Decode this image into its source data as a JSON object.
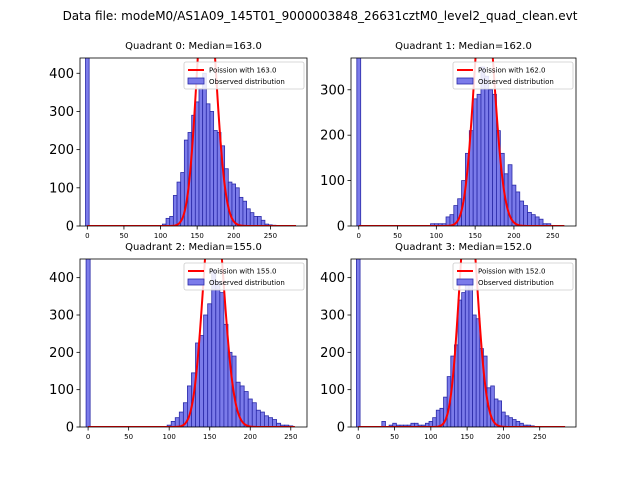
{
  "figure": {
    "title": "Data file: modeM0/AS1A09_145T01_9000003848_26631cztM0_level2_quad_clean.evt"
  },
  "colors": {
    "bar_fill": "#7b7bea",
    "bar_edge": "#2a2aa8",
    "poisson": "#ff0000"
  },
  "chart_data": [
    {
      "type": "bar",
      "title": "Quadrant 0: Median=163.0",
      "xlim": [
        -10,
        300
      ],
      "ylim": [
        0,
        440
      ],
      "xticks": [
        0,
        50,
        100,
        150,
        200,
        250
      ],
      "yticks": [
        0,
        100,
        200,
        300,
        400
      ],
      "bin_width": 5,
      "median": 163.0,
      "spike": {
        "x": 0,
        "value": 440
      },
      "bars": {
        "x": [
          105,
          110,
          115,
          120,
          125,
          130,
          135,
          140,
          145,
          150,
          155,
          160,
          165,
          170,
          175,
          180,
          185,
          190,
          195,
          200,
          205,
          210,
          215,
          220,
          225,
          230,
          235,
          240,
          245,
          250,
          255,
          260
        ],
        "values": [
          5,
          20,
          25,
          80,
          115,
          140,
          225,
          245,
          290,
          325,
          360,
          400,
          320,
          300,
          250,
          245,
          210,
          150,
          115,
          110,
          100,
          75,
          65,
          45,
          35,
          25,
          25,
          15,
          5,
          3,
          2,
          1
        ]
      },
      "legend": [
        "Poission with 163.0",
        "Observed distribution"
      ]
    },
    {
      "type": "bar",
      "title": "Quadrant 1: Median=162.0",
      "xlim": [
        -10,
        280
      ],
      "ylim": [
        0,
        370
      ],
      "xticks": [
        0,
        50,
        100,
        150,
        200,
        250
      ],
      "yticks": [
        0,
        100,
        200,
        300
      ],
      "bin_width": 5,
      "median": 162.0,
      "spike": {
        "x": 0,
        "value": 370
      },
      "bars": {
        "x": [
          95,
          100,
          105,
          110,
          115,
          120,
          125,
          130,
          135,
          140,
          145,
          150,
          155,
          160,
          165,
          170,
          175,
          180,
          185,
          190,
          195,
          200,
          205,
          210,
          215,
          220,
          225,
          230,
          235,
          240,
          245
        ],
        "values": [
          5,
          5,
          5,
          5,
          20,
          25,
          45,
          60,
          100,
          160,
          210,
          280,
          290,
          350,
          330,
          300,
          290,
          210,
          160,
          115,
          135,
          90,
          75,
          55,
          45,
          30,
          25,
          20,
          15,
          5,
          5
        ]
      },
      "legend": [
        "Poission with 162.0",
        "Observed distribution"
      ]
    },
    {
      "type": "bar",
      "title": "Quadrant 2: Median=155.0",
      "xlim": [
        -10,
        270
      ],
      "ylim": [
        0,
        450
      ],
      "xticks": [
        0,
        50,
        100,
        150,
        200,
        250
      ],
      "yticks": [
        0,
        100,
        200,
        300,
        400
      ],
      "bin_width": 5,
      "median": 155.0,
      "spike": {
        "x": 0,
        "value": 450
      },
      "bars": {
        "x": [
          100,
          105,
          110,
          115,
          120,
          125,
          130,
          135,
          140,
          145,
          150,
          155,
          160,
          165,
          170,
          175,
          180,
          185,
          190,
          195,
          200,
          205,
          210,
          215,
          220,
          225,
          230,
          235,
          240,
          245,
          250
        ],
        "values": [
          5,
          15,
          25,
          40,
          65,
          110,
          145,
          225,
          245,
          300,
          330,
          420,
          390,
          360,
          275,
          200,
          190,
          120,
          110,
          95,
          75,
          65,
          45,
          40,
          30,
          25,
          20,
          10,
          5,
          5,
          3
        ]
      },
      "legend": [
        "Poission with 155.0",
        "Observed distribution"
      ]
    },
    {
      "type": "bar",
      "title": "Quadrant 3: Median=152.0",
      "xlim": [
        -10,
        300
      ],
      "ylim": [
        0,
        450
      ],
      "xticks": [
        0,
        50,
        100,
        150,
        200,
        250
      ],
      "yticks": [
        0,
        100,
        200,
        300,
        400
      ],
      "bin_width": 5,
      "median": 152.0,
      "spike": {
        "x": 0,
        "value": 450
      },
      "bars": {
        "x": [
          35,
          45,
          50,
          55,
          60,
          65,
          70,
          75,
          80,
          85,
          90,
          95,
          100,
          105,
          110,
          115,
          120,
          125,
          130,
          135,
          140,
          145,
          150,
          155,
          160,
          165,
          170,
          175,
          180,
          185,
          190,
          195,
          200,
          205,
          210,
          215,
          220,
          225,
          230,
          235,
          240,
          245
        ],
        "values": [
          15,
          5,
          10,
          5,
          5,
          5,
          5,
          10,
          10,
          5,
          5,
          10,
          15,
          25,
          45,
          50,
          80,
          135,
          190,
          220,
          340,
          360,
          390,
          390,
          300,
          290,
          210,
          190,
          105,
          110,
          75,
          70,
          40,
          30,
          25,
          20,
          15,
          10,
          5,
          5,
          3,
          1
        ]
      },
      "legend": [
        "Poission with 152.0",
        "Observed distribution"
      ]
    }
  ]
}
